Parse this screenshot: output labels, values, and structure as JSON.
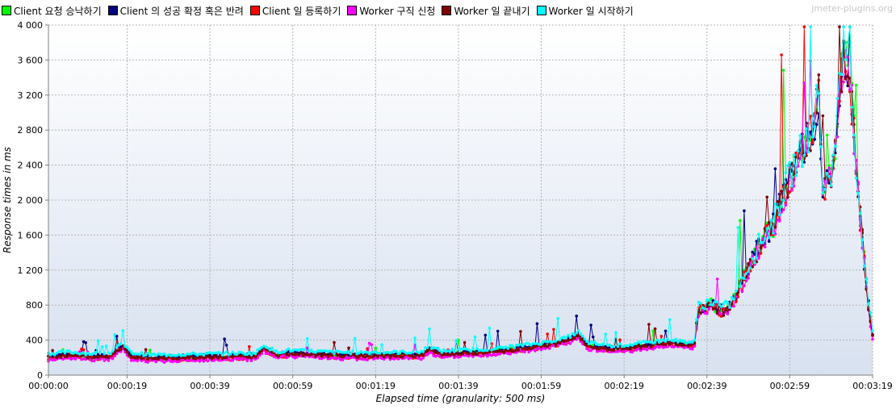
{
  "watermark": "jmeter-plugins.org",
  "colors": {
    "plot_bg_top": "#ffffff",
    "plot_bg_bottom": "#d8e1f0",
    "grid": "#b4b4b4"
  },
  "chart_data": {
    "type": "line",
    "title": "",
    "xlabel": "Elapsed time (granularity: 500 ms)",
    "ylabel": "Response times in ms",
    "ylim": [
      0,
      4000
    ],
    "xlim_seconds": [
      0,
      199
    ],
    "y_ticks": [
      0,
      400,
      800,
      1200,
      1600,
      2000,
      2400,
      2800,
      3200,
      3600,
      4000
    ],
    "y_tick_labels": [
      "0",
      "400",
      "800",
      "1 200",
      "1 600",
      "2 000",
      "2 400",
      "2 800",
      "3 200",
      "3 600",
      "4 000"
    ],
    "x_ticks_seconds": [
      0,
      19,
      39,
      59,
      79,
      99,
      119,
      139,
      159,
      179,
      199
    ],
    "x_tick_labels": [
      "00:00:00",
      "00:00:19",
      "00:00:39",
      "00:00:59",
      "00:01:19",
      "00:01:39",
      "00:01:59",
      "00:02:19",
      "00:02:39",
      "00:02:59",
      "00:03:19"
    ],
    "grid": true,
    "legend_position": "top-left",
    "series": [
      {
        "name": "Client 요청 승낙하기",
        "color": "#00ff00",
        "offset": 10,
        "seed": 1
      },
      {
        "name": "Client 의 성공 확정 혹은 반려",
        "color": "#000080",
        "offset": 20,
        "seed": 2
      },
      {
        "name": "Client 일 등록하기",
        "color": "#ff0000",
        "offset": -10,
        "seed": 3
      },
      {
        "name": "Worker 구직 신청",
        "color": "#ff00ff",
        "offset": -25,
        "seed": 4
      },
      {
        "name": "Worker 일 끝내기",
        "color": "#800000",
        "offset": 5,
        "seed": 5
      },
      {
        "name": "Worker 일 시작하기",
        "color": "#00ffff",
        "offset": 45,
        "seed": 6
      }
    ],
    "trend_points_seconds_ms": [
      [
        0,
        200
      ],
      [
        5,
        220
      ],
      [
        10,
        200
      ],
      [
        15,
        210
      ],
      [
        18,
        320
      ],
      [
        20,
        210
      ],
      [
        25,
        185
      ],
      [
        30,
        190
      ],
      [
        35,
        195
      ],
      [
        40,
        200
      ],
      [
        45,
        205
      ],
      [
        50,
        205
      ],
      [
        52,
        300
      ],
      [
        55,
        220
      ],
      [
        58,
        240
      ],
      [
        62,
        230
      ],
      [
        70,
        215
      ],
      [
        80,
        215
      ],
      [
        90,
        220
      ],
      [
        92,
        280
      ],
      [
        95,
        230
      ],
      [
        100,
        240
      ],
      [
        105,
        250
      ],
      [
        110,
        270
      ],
      [
        115,
        300
      ],
      [
        120,
        330
      ],
      [
        125,
        380
      ],
      [
        128,
        450
      ],
      [
        130,
        330
      ],
      [
        135,
        290
      ],
      [
        140,
        300
      ],
      [
        145,
        330
      ],
      [
        150,
        360
      ],
      [
        155,
        330
      ],
      [
        156,
        350
      ],
      [
        157,
        750
      ],
      [
        160,
        800
      ],
      [
        163,
        720
      ],
      [
        165,
        800
      ],
      [
        168,
        1100
      ],
      [
        170,
        1300
      ],
      [
        172,
        1500
      ],
      [
        175,
        1700
      ],
      [
        177,
        2000
      ],
      [
        180,
        2350
      ],
      [
        183,
        2650
      ],
      [
        185,
        2900
      ],
      [
        186,
        3200
      ],
      [
        187,
        2100
      ],
      [
        189,
        2300
      ],
      [
        190,
        2500
      ],
      [
        191,
        3300
      ],
      [
        192,
        3650
      ],
      [
        193,
        3550
      ],
      [
        194,
        3100
      ],
      [
        195,
        2400
      ],
      [
        196,
        1800
      ],
      [
        197,
        1300
      ],
      [
        198,
        800
      ],
      [
        199,
        450
      ]
    ]
  }
}
